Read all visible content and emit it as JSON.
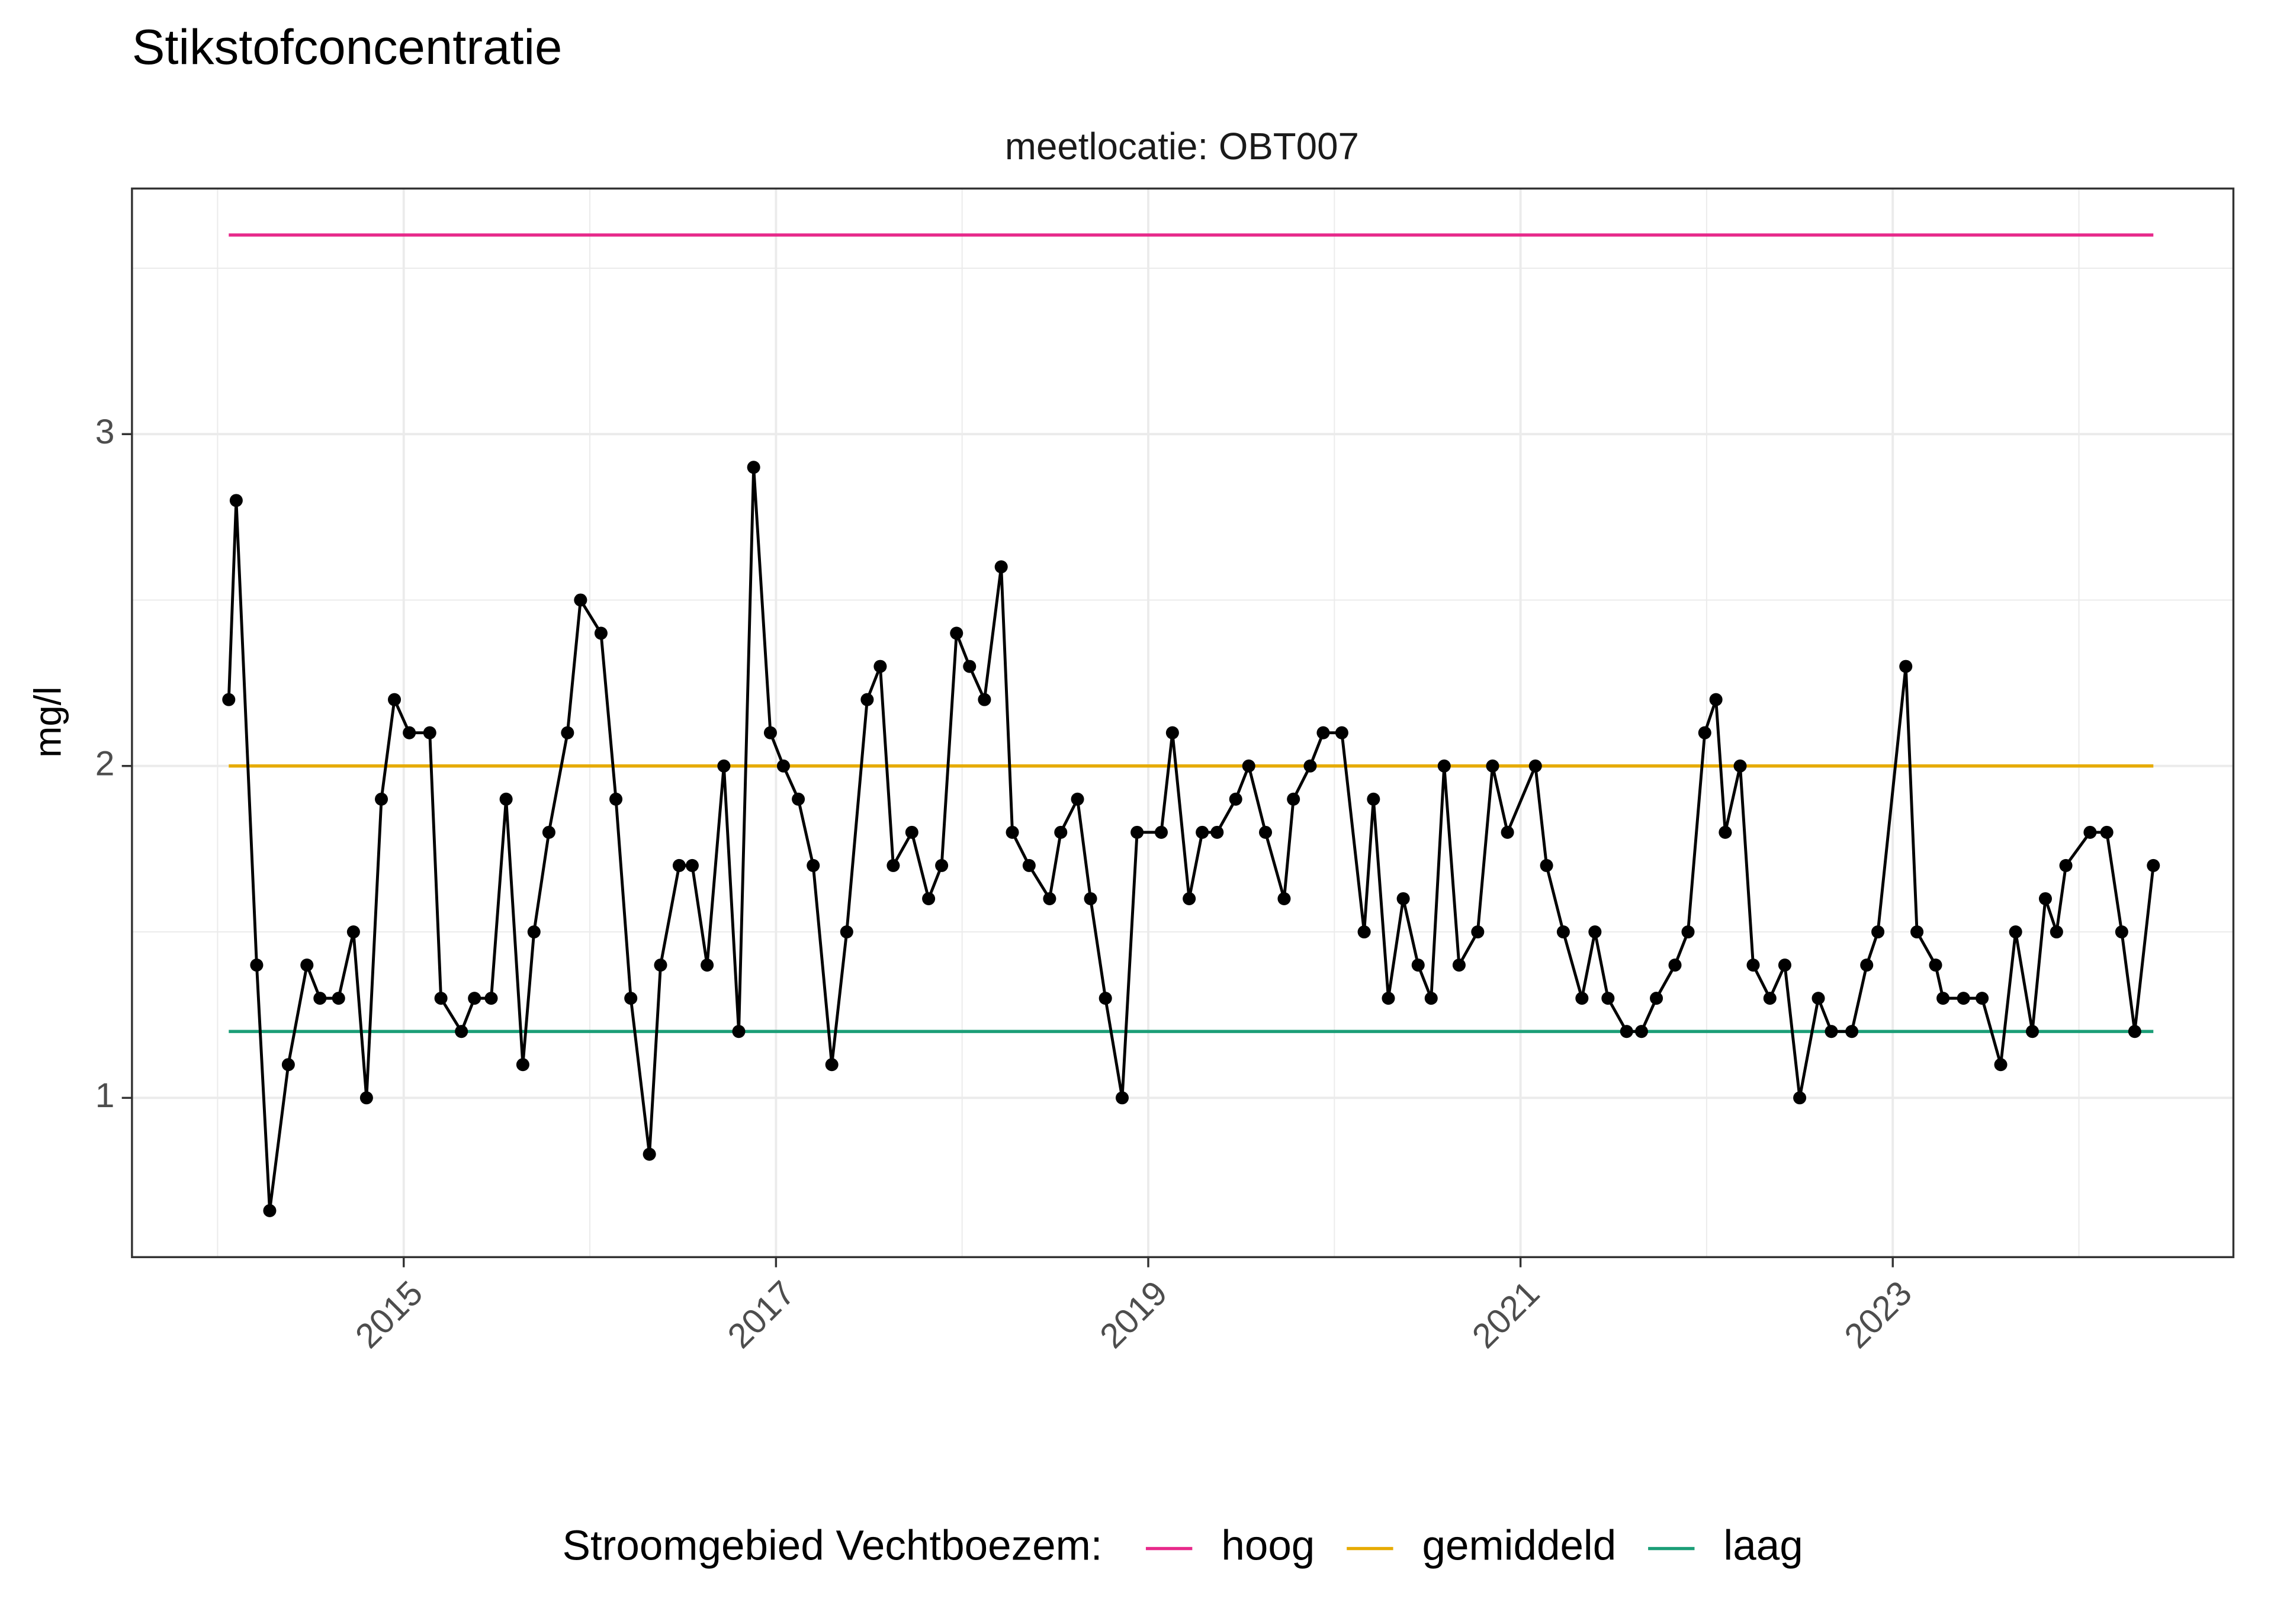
{
  "chart_data": {
    "type": "line",
    "title": "Stikstofconcentratie",
    "subtitle": "meetlocatie: OBT007",
    "ylabel": "mg/l",
    "legend_title": "Stroomgebied Vechtboezem:",
    "legend_position": "bottom",
    "grid": true,
    "xlim": [
      2013.54,
      2024.83
    ],
    "ylim": [
      0.52,
      3.74
    ],
    "xticks": [
      2015,
      2017,
      2019,
      2021,
      2023
    ],
    "yticks": [
      1,
      2,
      3
    ],
    "xminor": [
      2014,
      2016,
      2018,
      2020,
      2022,
      2024
    ],
    "yminor": [
      1.5,
      2.5,
      3.5
    ],
    "x": [
      2014.06,
      2014.1,
      2014.21,
      2014.28,
      2014.38,
      2014.48,
      2014.55,
      2014.65,
      2014.73,
      2014.8,
      2014.88,
      2014.95,
      2015.03,
      2015.14,
      2015.2,
      2015.31,
      2015.38,
      2015.47,
      2015.55,
      2015.64,
      2015.7,
      2015.78,
      2015.88,
      2015.95,
      2016.06,
      2016.14,
      2016.22,
      2016.32,
      2016.38,
      2016.48,
      2016.55,
      2016.63,
      2016.72,
      2016.8,
      2016.88,
      2016.97,
      2017.04,
      2017.12,
      2017.2,
      2017.3,
      2017.38,
      2017.49,
      2017.56,
      2017.63,
      2017.73,
      2017.82,
      2017.89,
      2017.97,
      2018.04,
      2018.12,
      2018.21,
      2018.27,
      2018.36,
      2018.47,
      2018.53,
      2018.62,
      2018.69,
      2018.77,
      2018.86,
      2018.94,
      2019.07,
      2019.13,
      2019.22,
      2019.29,
      2019.37,
      2019.47,
      2019.54,
      2019.63,
      2019.73,
      2019.78,
      2019.87,
      2019.94,
      2020.04,
      2020.16,
      2020.21,
      2020.29,
      2020.37,
      2020.45,
      2020.52,
      2020.59,
      2020.67,
      2020.77,
      2020.85,
      2020.93,
      2021.08,
      2021.14,
      2021.23,
      2021.33,
      2021.4,
      2021.47,
      2021.57,
      2021.65,
      2021.73,
      2021.83,
      2021.9,
      2021.99,
      2022.05,
      2022.1,
      2022.18,
      2022.25,
      2022.34,
      2022.42,
      2022.5,
      2022.6,
      2022.67,
      2022.78,
      2022.86,
      2022.92,
      2023.07,
      2023.13,
      2023.23,
      2023.27,
      2023.38,
      2023.48,
      2023.58,
      2023.66,
      2023.75,
      2023.82,
      2023.88,
      2023.93,
      2024.06,
      2024.15,
      2024.23,
      2024.3,
      2024.4
    ],
    "series": [
      {
        "color": "#000000",
        "values": [
          2.2,
          2.8,
          1.4,
          0.66,
          1.1,
          1.4,
          1.3,
          1.3,
          1.5,
          1.0,
          1.9,
          2.2,
          2.1,
          2.1,
          1.3,
          1.2,
          1.3,
          1.3,
          1.9,
          1.1,
          1.5,
          1.8,
          2.1,
          2.5,
          2.4,
          1.9,
          1.3,
          0.83,
          1.4,
          1.7,
          1.7,
          1.4,
          2.0,
          1.2,
          2.9,
          2.1,
          2.0,
          1.9,
          1.7,
          1.1,
          1.5,
          2.2,
          2.3,
          1.7,
          1.8,
          1.6,
          1.7,
          2.4,
          2.3,
          2.2,
          2.6,
          1.8,
          1.7,
          1.6,
          1.8,
          1.9,
          1.6,
          1.3,
          1.0,
          1.8,
          1.8,
          2.1,
          1.6,
          1.8,
          1.8,
          1.9,
          2.0,
          1.8,
          1.6,
          1.9,
          2.0,
          2.1,
          2.1,
          1.5,
          1.9,
          1.3,
          1.6,
          1.4,
          1.3,
          2.0,
          1.4,
          1.5,
          2.0,
          1.8,
          2.0,
          1.7,
          1.5,
          1.3,
          1.5,
          1.3,
          1.2,
          1.2,
          1.3,
          1.4,
          1.5,
          2.1,
          2.2,
          1.8,
          2.0,
          1.4,
          1.3,
          1.4,
          1.0,
          1.3,
          1.2,
          1.2,
          1.4,
          1.5,
          2.3,
          1.5,
          1.4,
          1.3,
          1.3,
          1.3,
          1.1,
          1.5,
          1.2,
          1.6,
          1.5,
          1.7,
          1.8,
          1.8,
          1.5,
          1.2,
          1.7
        ]
      }
    ],
    "reference_lines": [
      {
        "name": "hoog",
        "color": "#e7298a",
        "value": 3.6
      },
      {
        "name": "gemiddeld",
        "color": "#e6ab02",
        "value": 2.0
      },
      {
        "name": "laag",
        "color": "#1b9e77",
        "value": 1.2
      }
    ]
  }
}
